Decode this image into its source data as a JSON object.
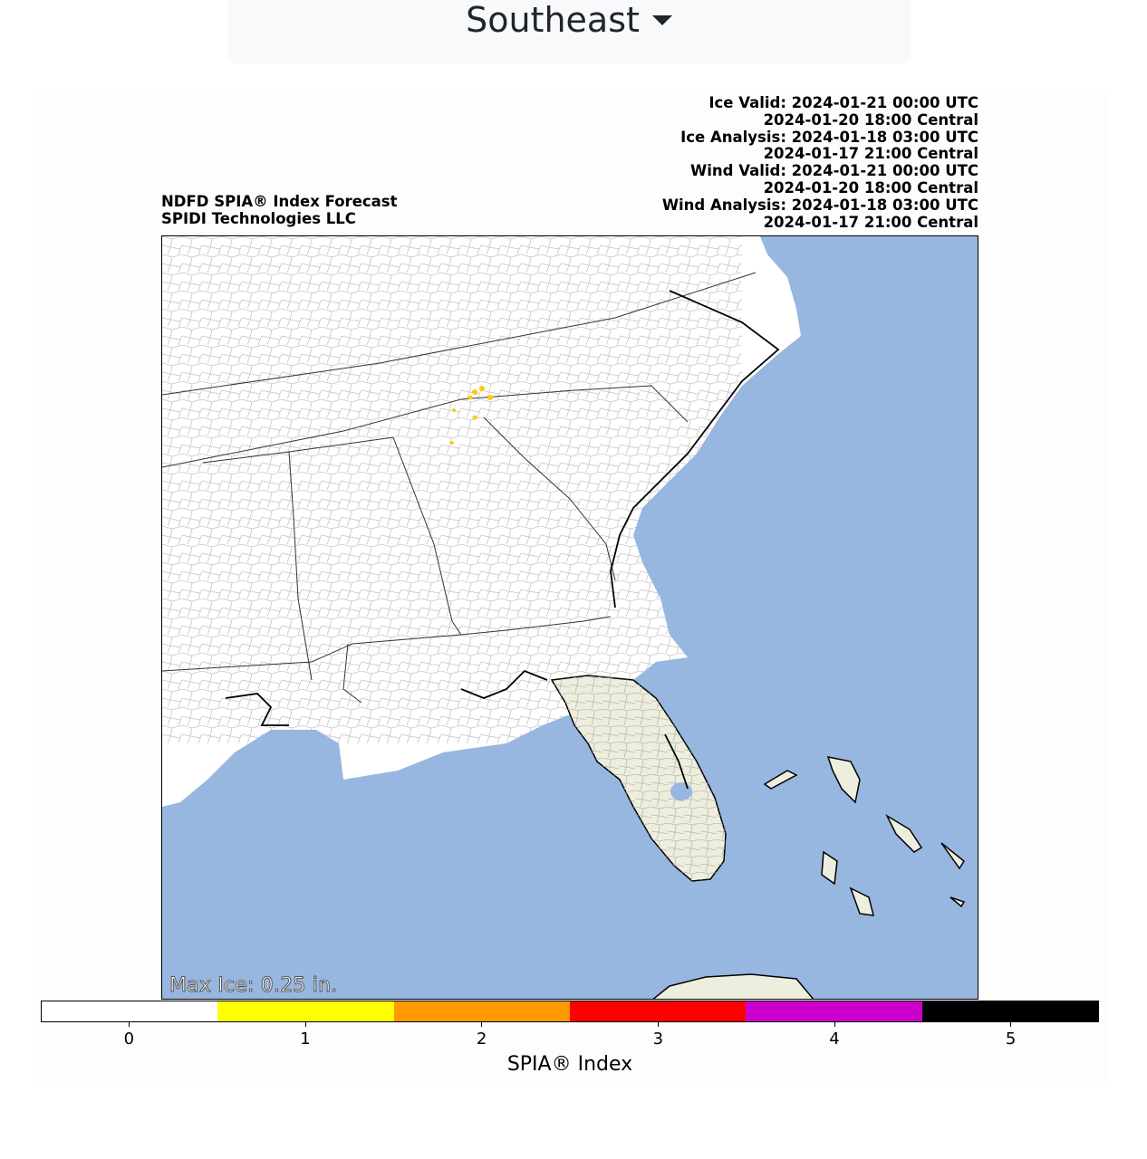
{
  "region_selector": {
    "selected": "Southeast",
    "caret_icon": "caret-down-icon"
  },
  "header_left": {
    "line1": "NDFD SPIA® Index Forecast",
    "line2": "SPIDI Technologies LLC"
  },
  "header_right": {
    "lines": [
      "Ice Valid: 2024-01-21 00:00 UTC",
      "2024-01-20 18:00 Central",
      "Ice Analysis: 2024-01-18 03:00 UTC",
      "2024-01-17 21:00 Central",
      "Wind Valid: 2024-01-21 00:00 UTC",
      "2024-01-20 18:00 Central",
      "Wind Analysis: 2024-01-18 03:00 UTC",
      "2024-01-17 21:00 Central"
    ]
  },
  "map": {
    "max_ice": "Max Ice: 0.25 in.",
    "colors": {
      "ocean": "#97b6e0",
      "land": "#ffffff",
      "florida_shade": "#eeeedf",
      "state_border": "#333333",
      "county_border": "#bbbbbb"
    }
  },
  "colorbar": {
    "label": "SPIA® Index",
    "ticks": [
      "0",
      "1",
      "2",
      "3",
      "4",
      "5"
    ],
    "colors": [
      "#ffffff",
      "#ffff00",
      "#ff9900",
      "#ff0000",
      "#cc00cc",
      "#000000"
    ]
  }
}
